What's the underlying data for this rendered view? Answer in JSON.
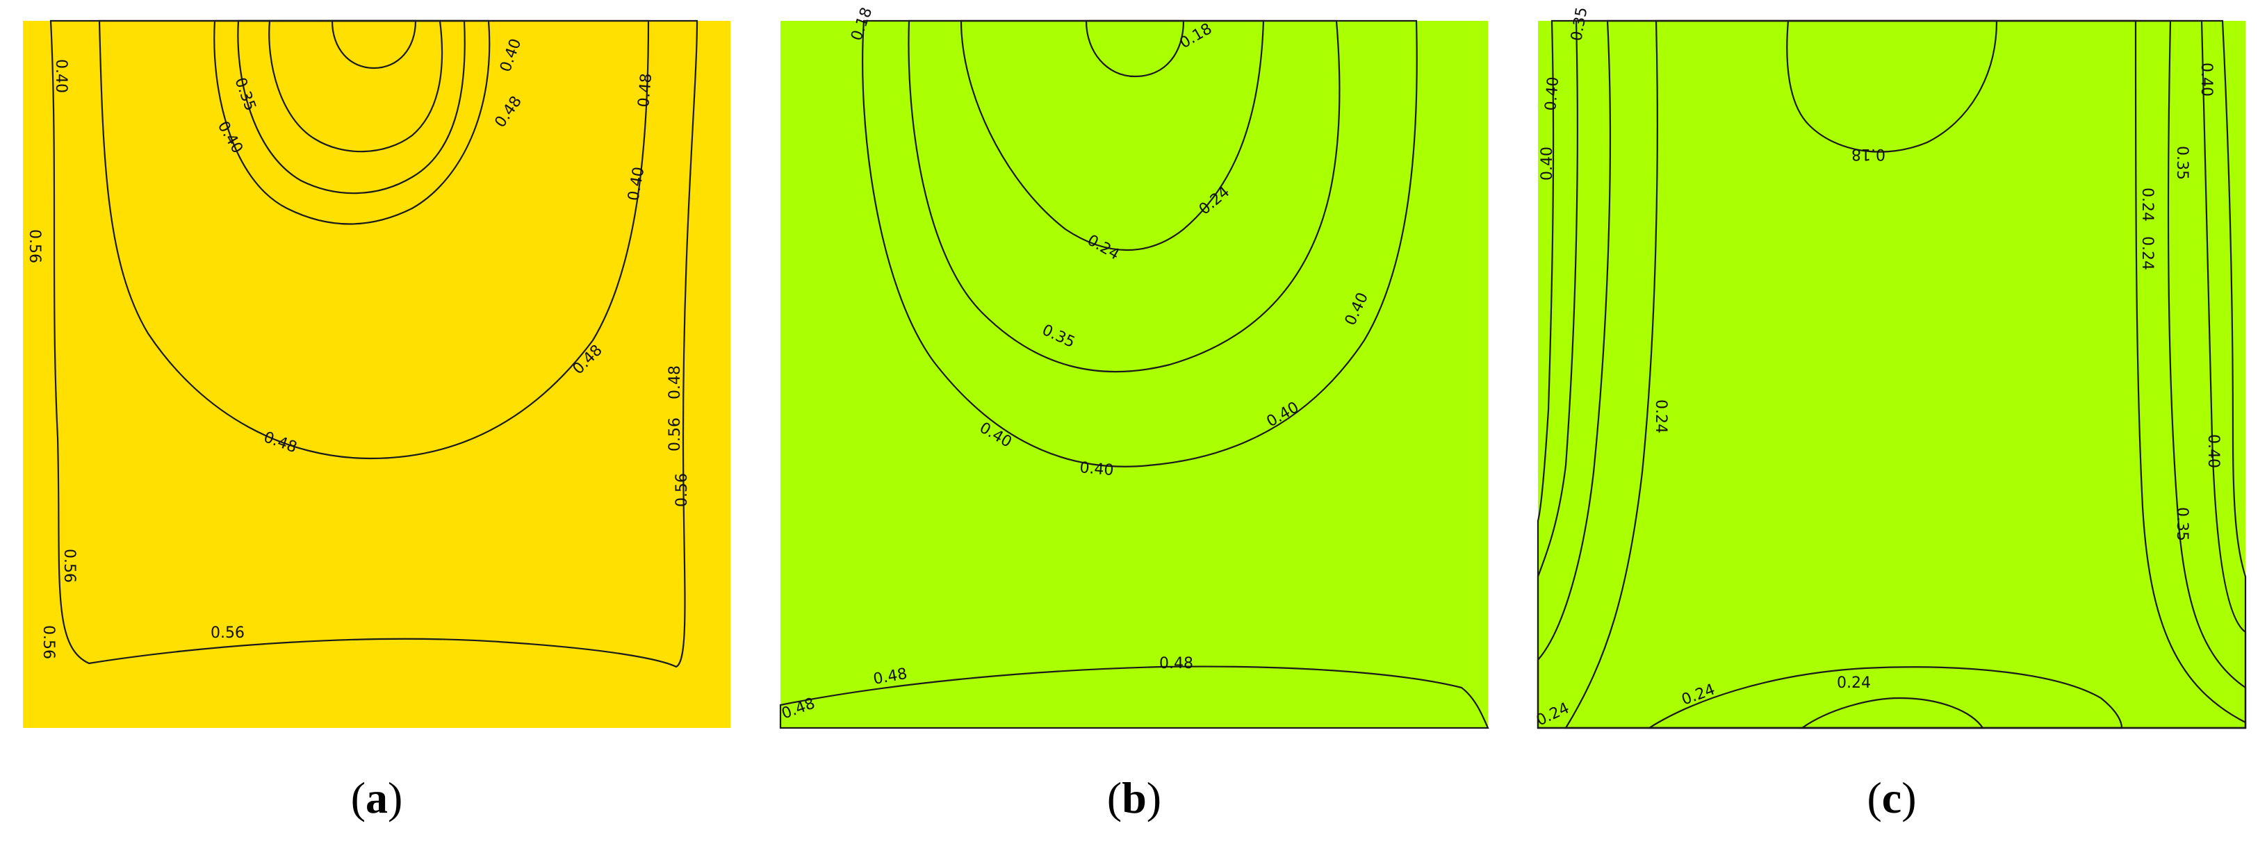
{
  "panels": [
    {
      "caption_open": "(",
      "caption_letter": "a",
      "caption_close": ")",
      "colors": {
        "outer": "#ffe000",
        "level1": "#aaff00",
        "level2": "#55ff00",
        "level3": "#00ff66",
        "level4": "#00ffcc",
        "core": "#00a0ff"
      },
      "labels": [
        "0.40",
        "0.35",
        "0.40",
        "0.40",
        "0.48",
        "0.48",
        "0.40",
        "0.48",
        "0.48",
        "0.56",
        "0.48",
        "0.56",
        "0.56",
        "0.56",
        "0.56",
        "0.56"
      ]
    },
    {
      "caption_open": "(",
      "caption_letter": "b",
      "caption_close": ")",
      "colors": {
        "outer": "#aaff00",
        "level1": "#55ff00",
        "level2": "#33ee44",
        "level3": "#00ff99",
        "level4": "#00ffee",
        "core": "#00a0ff"
      },
      "labels": [
        "0.18",
        "0.18",
        "0.24",
        "0.24",
        "0.35",
        "0.40",
        "0.40",
        "0.40",
        "0.40",
        "0.48",
        "0.48",
        "0.48"
      ]
    },
    {
      "caption_open": "(",
      "caption_letter": "c",
      "caption_close": ")",
      "colors": {
        "outer": "#aaff00",
        "level1": "#55ff00",
        "level2": "#00ff66",
        "level3": "#00ffcc",
        "level4": "#00ffee",
        "core": "#00a0ff"
      },
      "labels": [
        "0.35",
        "0.40",
        "0.40",
        "0.18",
        "0.40",
        "0.35",
        "0.24",
        "0.24",
        "0.24",
        "0.40",
        "0.35",
        "0.24",
        "0.24",
        "0.24"
      ]
    }
  ]
}
